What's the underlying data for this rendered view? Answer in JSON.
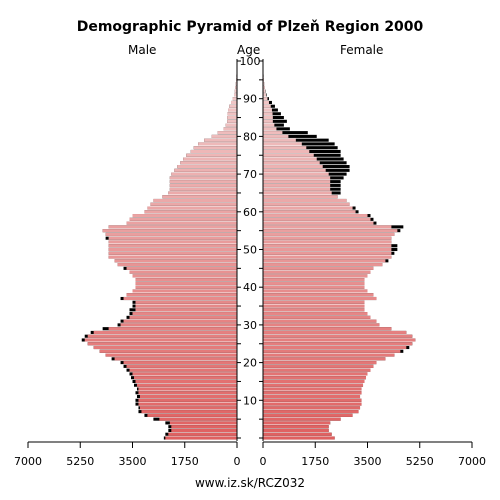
{
  "chart_data": {
    "type": "bar",
    "title": "Demographic Pyramid of Plzeň Region 2000",
    "left_label": "Male",
    "center_label": "Age",
    "right_label": "Female",
    "footer": "www.iz.sk/RCZ032",
    "x_ticks_left": [
      "7000",
      "5250",
      "3500",
      "1750",
      "0"
    ],
    "x_ticks_right": [
      "0",
      "1750",
      "3500",
      "5250",
      "7000"
    ],
    "age_ticks": [
      "10",
      "20",
      "30",
      "40",
      "50",
      "60",
      "70",
      "80",
      "90",
      "100"
    ],
    "xlim": [
      0,
      7000
    ],
    "ages": [
      0,
      1,
      2,
      3,
      4,
      5,
      6,
      7,
      8,
      9,
      10,
      11,
      12,
      13,
      14,
      15,
      16,
      17,
      18,
      19,
      20,
      21,
      22,
      23,
      24,
      25,
      26,
      27,
      28,
      29,
      30,
      31,
      32,
      33,
      34,
      35,
      36,
      37,
      38,
      39,
      40,
      41,
      42,
      43,
      44,
      45,
      46,
      47,
      48,
      49,
      50,
      51,
      52,
      53,
      54,
      55,
      56,
      57,
      58,
      59,
      60,
      61,
      62,
      63,
      64,
      65,
      66,
      67,
      68,
      69,
      70,
      71,
      72,
      73,
      74,
      75,
      76,
      77,
      78,
      79,
      80,
      81,
      82,
      83,
      84,
      85,
      86,
      87,
      88,
      89,
      90,
      91,
      92,
      93,
      94,
      95,
      96,
      97,
      98,
      99,
      100
    ],
    "series": [
      {
        "name": "Male",
        "values": [
          2450,
          2400,
          2300,
          2300,
          2400,
          2800,
          3100,
          3300,
          3300,
          3400,
          3400,
          3350,
          3400,
          3350,
          3450,
          3500,
          3550,
          3600,
          3700,
          3800,
          3900,
          4200,
          4400,
          4600,
          4800,
          5000,
          5200,
          5100,
          4900,
          4500,
          4000,
          3900,
          3700,
          3600,
          3600,
          3500,
          3500,
          3900,
          3700,
          3500,
          3400,
          3400,
          3400,
          3500,
          3600,
          3800,
          4000,
          4100,
          4300,
          4300,
          4300,
          4300,
          4300,
          4400,
          4400,
          4500,
          4300,
          3700,
          3600,
          3500,
          3100,
          3000,
          2900,
          2800,
          2500,
          2300,
          2250,
          2250,
          2250,
          2250,
          2200,
          2100,
          2000,
          1900,
          1800,
          1700,
          1550,
          1450,
          1300,
          1100,
          850,
          650,
          450,
          380,
          330,
          330,
          320,
          300,
          260,
          200,
          150,
          100,
          80,
          60,
          40,
          30,
          20,
          15,
          10,
          5,
          3
        ]
      },
      {
        "name": "Female",
        "values": [
          2400,
          2300,
          2200,
          2200,
          2250,
          2600,
          3000,
          3200,
          3250,
          3300,
          3300,
          3250,
          3300,
          3300,
          3350,
          3400,
          3450,
          3500,
          3600,
          3700,
          3800,
          4100,
          4400,
          4700,
          4900,
          5000,
          5100,
          5000,
          4800,
          4300,
          3900,
          3800,
          3600,
          3500,
          3400,
          3400,
          3400,
          3800,
          3700,
          3500,
          3400,
          3400,
          3400,
          3500,
          3600,
          3700,
          4000,
          4200,
          4300,
          4400,
          4500,
          4500,
          4300,
          4300,
          4400,
          4600,
          4700,
          3800,
          3700,
          3600,
          3200,
          3100,
          2900,
          2800,
          2500,
          2600,
          2600,
          2600,
          2600,
          2700,
          2800,
          2900,
          2900,
          2800,
          2700,
          2600,
          2600,
          2500,
          2400,
          2200,
          1800,
          1500,
          900,
          700,
          800,
          700,
          600,
          500,
          400,
          300,
          200,
          120,
          90,
          60,
          40,
          30,
          20,
          15,
          10,
          5,
          3
        ]
      }
    ],
    "excess_color": "#000000",
    "colors": {
      "gradient_low": "#e06060",
      "gradient_high": "#f2d2d2"
    }
  }
}
